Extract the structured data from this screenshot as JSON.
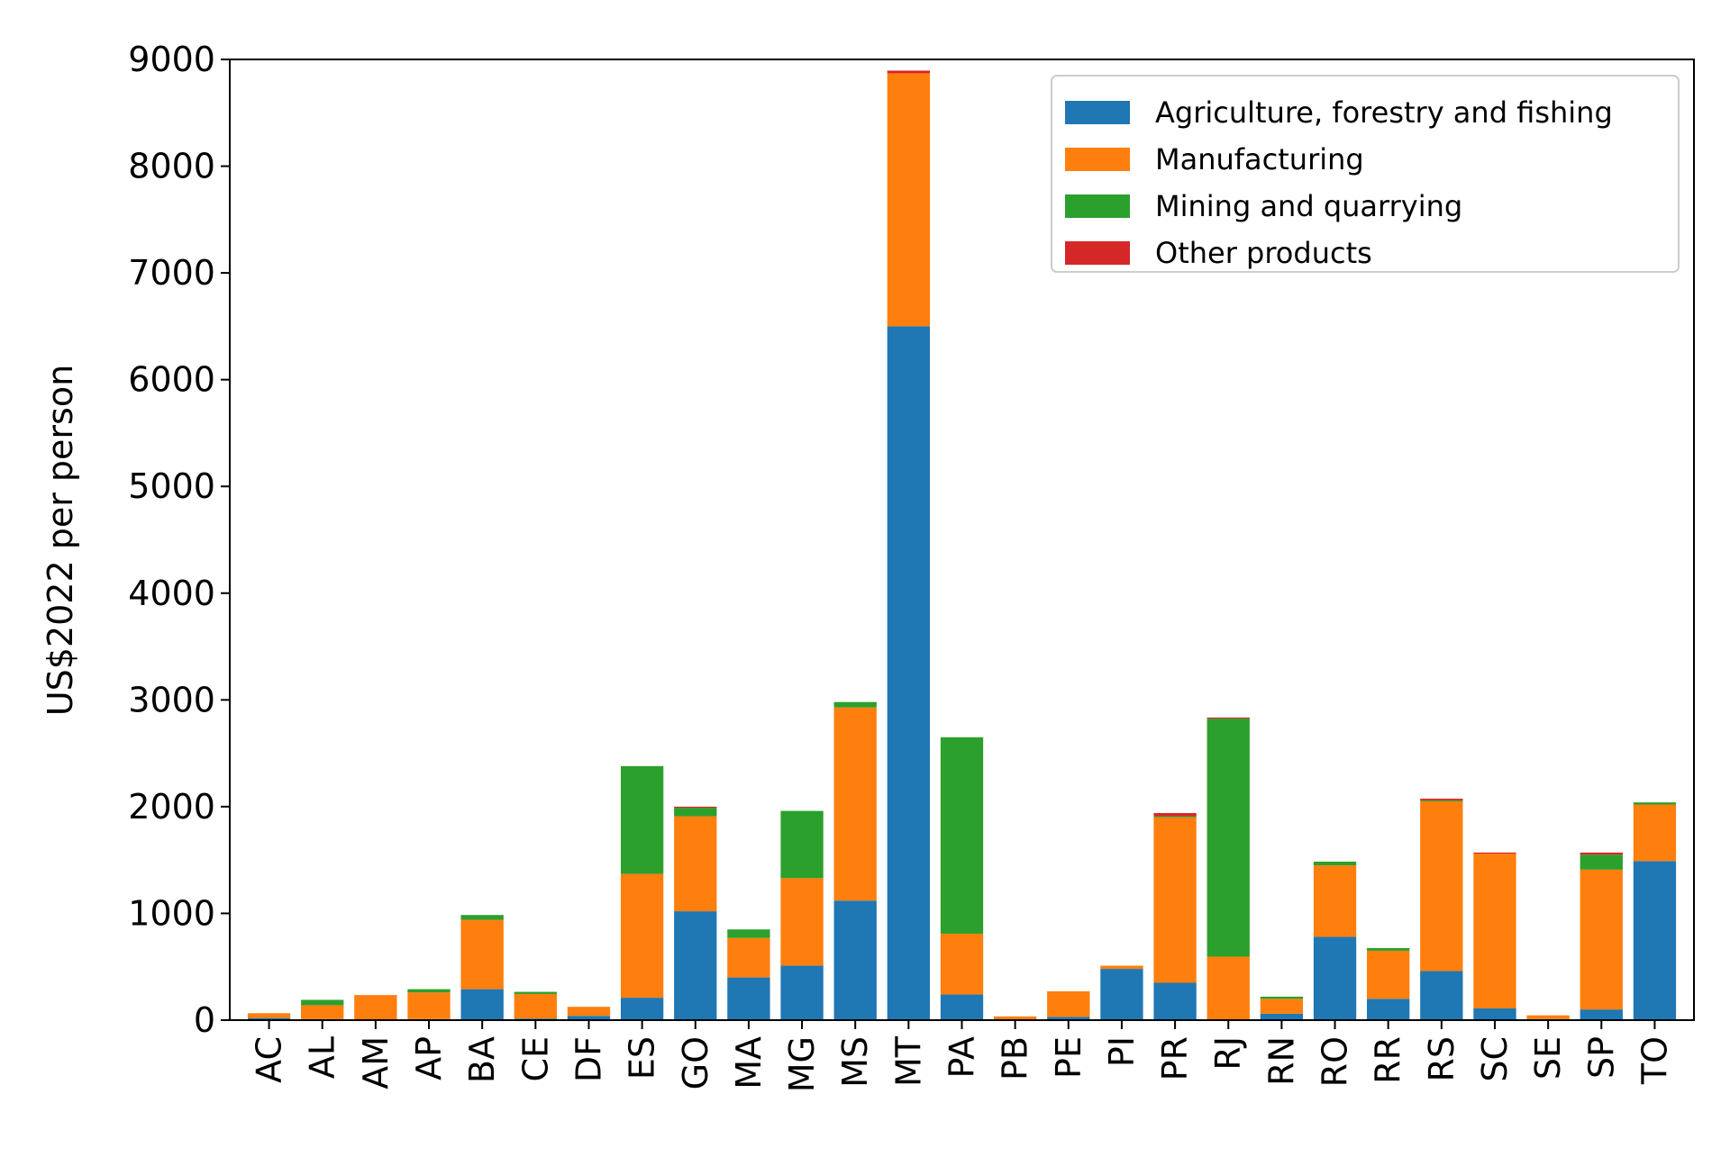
{
  "chart_data": {
    "type": "bar",
    "stacked": true,
    "title": "",
    "xlabel": "",
    "ylabel": "US$2022 per person",
    "ylim": [
      0,
      9000
    ],
    "yticks": [
      0,
      1000,
      2000,
      3000,
      4000,
      5000,
      6000,
      7000,
      8000,
      9000
    ],
    "legend_position": "top-right",
    "categories": [
      "AC",
      "AL",
      "AM",
      "AP",
      "BA",
      "CE",
      "DF",
      "ES",
      "GO",
      "MA",
      "MG",
      "MS",
      "MT",
      "PA",
      "PB",
      "PE",
      "PI",
      "PR",
      "RJ",
      "RN",
      "RO",
      "RR",
      "RS",
      "SC",
      "SE",
      "SP",
      "TO"
    ],
    "series": [
      {
        "name": "Agriculture, forestry and fishing",
        "color": "#1f77b4",
        "values": [
          20,
          10,
          5,
          10,
          290,
          15,
          40,
          210,
          1020,
          400,
          510,
          1120,
          6500,
          240,
          5,
          30,
          480,
          350,
          5,
          60,
          780,
          200,
          460,
          110,
          10,
          100,
          1490
        ]
      },
      {
        "name": "Manufacturing",
        "color": "#ff7f0e",
        "values": [
          45,
          130,
          230,
          250,
          650,
          230,
          85,
          1160,
          890,
          370,
          820,
          1810,
          2370,
          570,
          30,
          240,
          30,
          1550,
          590,
          140,
          670,
          450,
          1590,
          1450,
          35,
          1310,
          530
        ]
      },
      {
        "name": "Mining and quarrying",
        "color": "#2ca02c",
        "values": [
          0,
          50,
          0,
          30,
          45,
          20,
          0,
          1010,
          80,
          80,
          630,
          50,
          0,
          1840,
          0,
          0,
          0,
          10,
          2230,
          20,
          35,
          25,
          10,
          0,
          0,
          140,
          20
        ]
      },
      {
        "name": "Other products",
        "color": "#d62728",
        "values": [
          0,
          0,
          0,
          0,
          0,
          0,
          0,
          0,
          10,
          0,
          0,
          0,
          25,
          0,
          0,
          0,
          0,
          30,
          10,
          0,
          0,
          0,
          15,
          10,
          0,
          20,
          0
        ]
      }
    ]
  }
}
